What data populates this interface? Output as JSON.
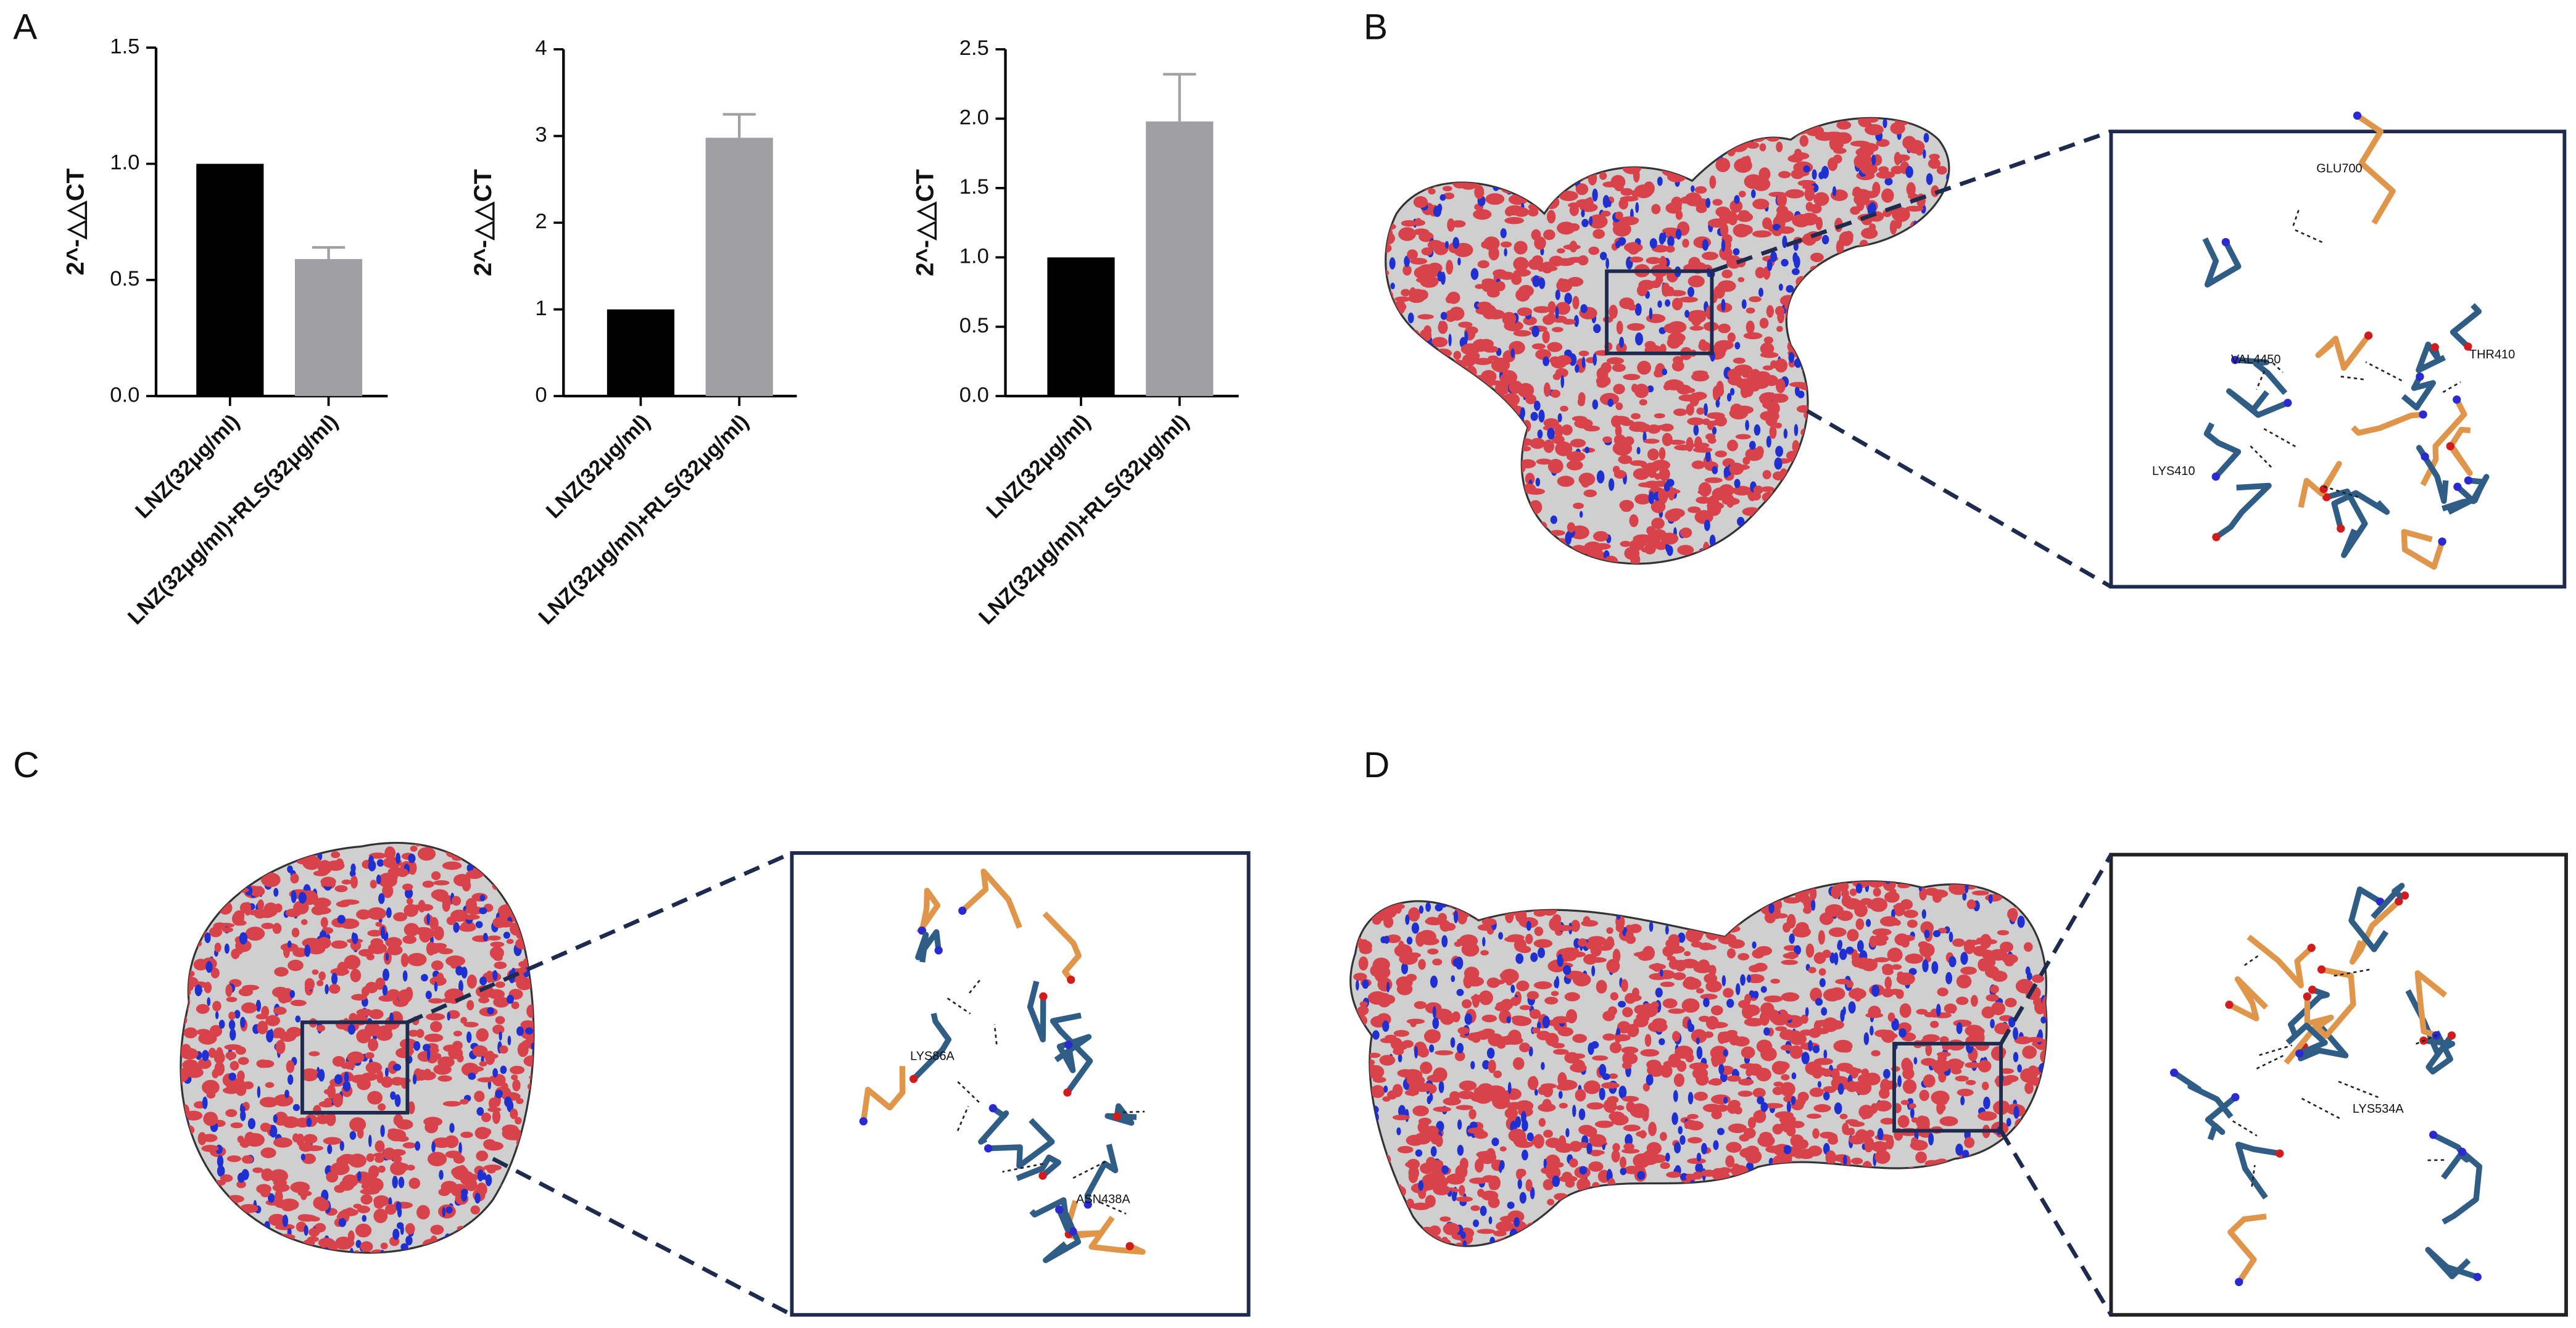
{
  "chart_data": [
    {
      "type": "bar",
      "ylabel": "2^-△△CT",
      "categories": [
        "LNZ(32μg/ml)",
        "LNZ(32μg/ml)+RLS(32μg/ml)"
      ],
      "values": [
        1,
        0.59
      ],
      "errors": [
        0,
        0.05
      ],
      "colors": [
        "#000000",
        "#a0a0a4"
      ],
      "ylim": [
        0,
        1.5
      ],
      "yticks": [
        {
          "value": 0,
          "label": "0.0"
        },
        0.5,
        {
          "value": 1,
          "label": "1.0"
        },
        1.5
      ]
    },
    {
      "type": "bar",
      "ylabel": "2^-△△CT",
      "categories": [
        "LNZ(32μg/ml)",
        "LNZ(32μg/ml)+RLS(32μg/ml)"
      ],
      "values": [
        1,
        2.98
      ],
      "errors": [
        0,
        0.27
      ],
      "colors": [
        "#000000",
        "#a0a0a4"
      ],
      "ylim": [
        0,
        4
      ],
      "yticks": [
        0,
        1,
        2,
        3,
        4
      ]
    },
    {
      "type": "bar",
      "ylabel": "2^-△△CT",
      "categories": [
        "LNZ(32μg/ml)",
        "LNZ(32μg/ml)+RLS(32μg/ml)"
      ],
      "values": [
        1,
        1.98
      ],
      "errors": [
        0,
        0.34
      ],
      "colors": [
        "#000000",
        "#a0a0a4"
      ],
      "ylim": [
        0,
        2.5
      ],
      "yticks": [
        {
          "value": 0,
          "label": "0.0"
        },
        0.5,
        {
          "value": 1,
          "label": "1.0"
        },
        1.5,
        {
          "value": 2,
          "label": "2.0"
        },
        2.5
      ]
    }
  ],
  "panel_labels": [
    "A",
    "B",
    "C",
    "D"
  ],
  "residues": {
    "B": [
      "GLU700",
      "VAL4450",
      "THR410",
      "LYS410"
    ],
    "C": [
      "LYS86A",
      "ASN438A"
    ],
    "D": [
      "LYS534A"
    ]
  }
}
